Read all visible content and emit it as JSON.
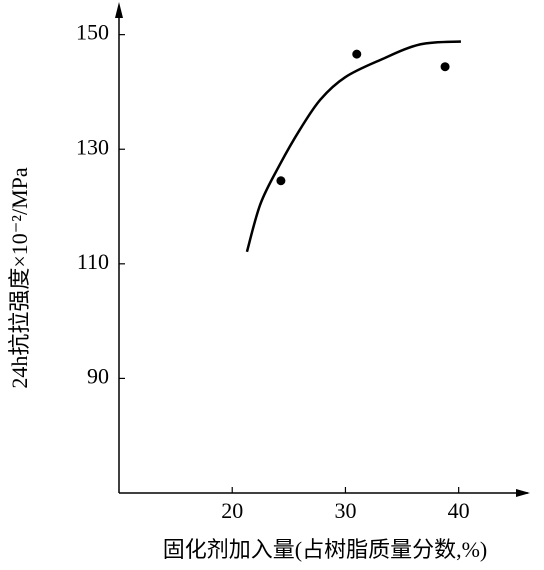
{
  "chart_data": {
    "type": "scatter",
    "x_label": "固化剂加入量(占树脂质量分数,%)",
    "y_label": "24h抗拉强度×10⁻²/MPa",
    "x": [
      24.3,
      31.0,
      38.8
    ],
    "values": [
      124.5,
      146.6,
      144.4
    ],
    "color": "#000000",
    "curve": {
      "x": [
        21.3,
        22.5,
        24.2,
        26.0,
        27.8,
        30.0,
        33.1,
        36.6,
        40.2
      ],
      "values": [
        112.1,
        120.5,
        127.3,
        133.5,
        138.7,
        142.6,
        145.6,
        148.3,
        148.8
      ]
    },
    "xlim": [
      10,
      46.3
    ],
    "ylim": [
      70,
      155
    ],
    "xticks": [
      20,
      30,
      40
    ],
    "yticks": [
      90,
      110,
      130,
      150
    ],
    "grid": false
  }
}
